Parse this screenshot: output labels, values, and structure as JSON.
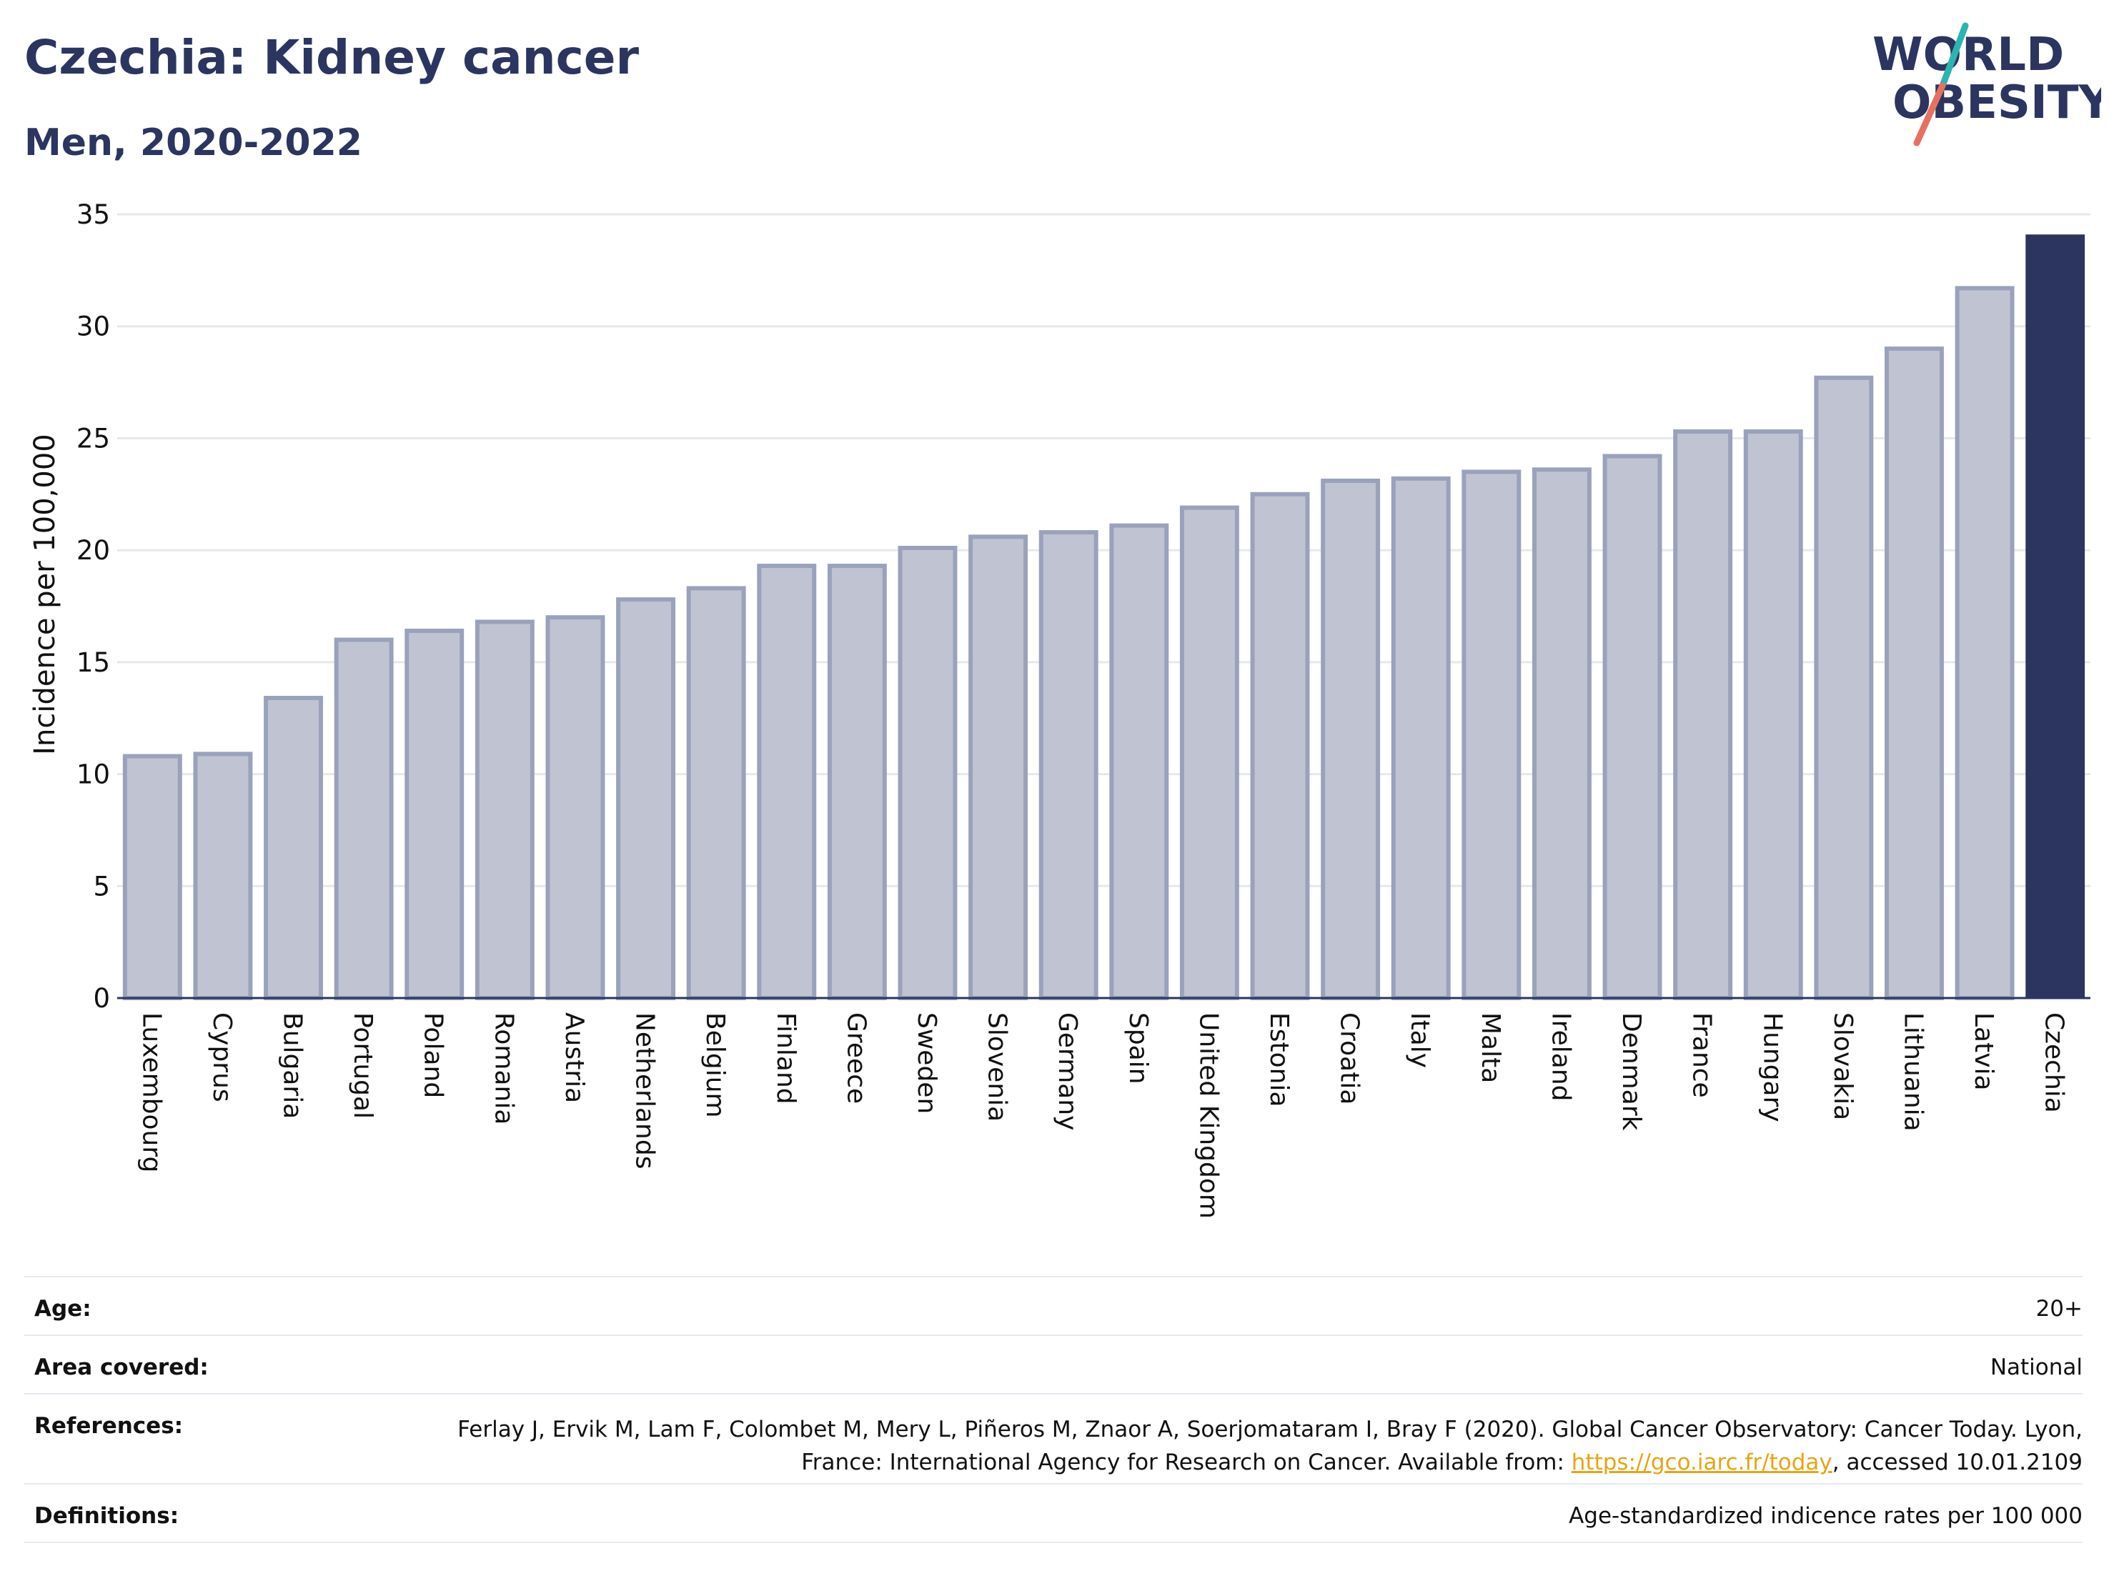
{
  "header": {
    "title": "Czechia: Kidney cancer",
    "subtitle": "Men, 2020-2022"
  },
  "logo": {
    "line1": "WORLD",
    "line2": "OBESITY",
    "slash_colors": [
      "#2bb5b0",
      "#e8705f"
    ]
  },
  "colors": {
    "bar_default": "#c0c4d2",
    "bar_border": "#9aa2bb",
    "bar_highlight": "#2b3560",
    "title": "#2b3560",
    "link": "#e8a413"
  },
  "chart_data": {
    "type": "bar",
    "title": "",
    "xlabel": "",
    "ylabel": "Incidence per 100,000",
    "ylim": [
      0,
      35
    ],
    "yticks": [
      0,
      5,
      10,
      15,
      20,
      25,
      30,
      35
    ],
    "grid": true,
    "highlight": "Czechia",
    "categories": [
      "Luxembourg",
      "Cyprus",
      "Bulgaria",
      "Portugal",
      "Poland",
      "Romania",
      "Austria",
      "Netherlands",
      "Belgium",
      "Finland",
      "Greece",
      "Sweden",
      "Slovenia",
      "Germany",
      "Spain",
      "United Kingdom",
      "Estonia",
      "Croatia",
      "Italy",
      "Malta",
      "Ireland",
      "Denmark",
      "France",
      "Hungary",
      "Slovakia",
      "Lithuania",
      "Latvia",
      "Czechia"
    ],
    "values": [
      10.8,
      10.9,
      13.4,
      16.0,
      16.4,
      16.8,
      17.0,
      17.8,
      18.3,
      19.3,
      19.3,
      20.1,
      20.6,
      20.8,
      21.1,
      21.9,
      22.5,
      23.1,
      23.2,
      23.5,
      23.6,
      24.2,
      25.3,
      25.3,
      27.7,
      29.0,
      31.7,
      34.1
    ]
  },
  "info": {
    "age_label": "Age:",
    "age_value": "20+",
    "area_label": "Area covered:",
    "area_value": "National",
    "references_label": "References:",
    "references_text": "Ferlay J, Ervik M, Lam F, Colombet M, Mery L, Piñeros M, Znaor A, Soerjomataram I, Bray F (2020). Global Cancer Observatory: Cancer Today. Lyon, France: International Agency for Research on Cancer. Available from: ",
    "references_link": "https://gco.iarc.fr/today",
    "references_suffix": ", accessed 10.01.2109",
    "definitions_label": "Definitions:",
    "definitions_value": "Age-standardized indicence rates per 100 000"
  }
}
